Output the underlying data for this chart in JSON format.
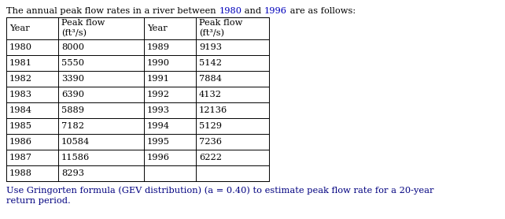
{
  "title_seg1": "The annual peak flow rates in a river between ",
  "title_seg2": "1980",
  "title_seg3": " and ",
  "title_seg4": "1996",
  "title_seg5": " are as follows:",
  "col_headers": [
    "Year",
    "Peak flow\n(ft³/s)",
    "Year",
    "Peak flow\n(ft³/s)"
  ],
  "left_years": [
    "1980",
    "1981",
    "1982",
    "1983",
    "1984",
    "1985",
    "1986",
    "1987",
    "1988"
  ],
  "left_flows": [
    "8000",
    "5550",
    "3390",
    "6390",
    "5889",
    "7182",
    "10584",
    "11586",
    "8293"
  ],
  "right_years": [
    "1989",
    "1990",
    "1991",
    "1992",
    "1993",
    "1994",
    "1995",
    "1996",
    ""
  ],
  "right_flows": [
    "9193",
    "5142",
    "7884",
    "4132",
    "12136",
    "5129",
    "7236",
    "6222",
    ""
  ],
  "footer_line1": "Use Gringorten formula (GEV distribution) (a = 0.40) to estimate peak flow rate for a 20-year",
  "footer_line2": "return period.",
  "black": "#000000",
  "blue_year": "#0000bb",
  "blue_footer": "#000080",
  "white": "#ffffff",
  "font_size": 8.2,
  "title_font_size": 8.2,
  "footer_font_size": 8.2
}
